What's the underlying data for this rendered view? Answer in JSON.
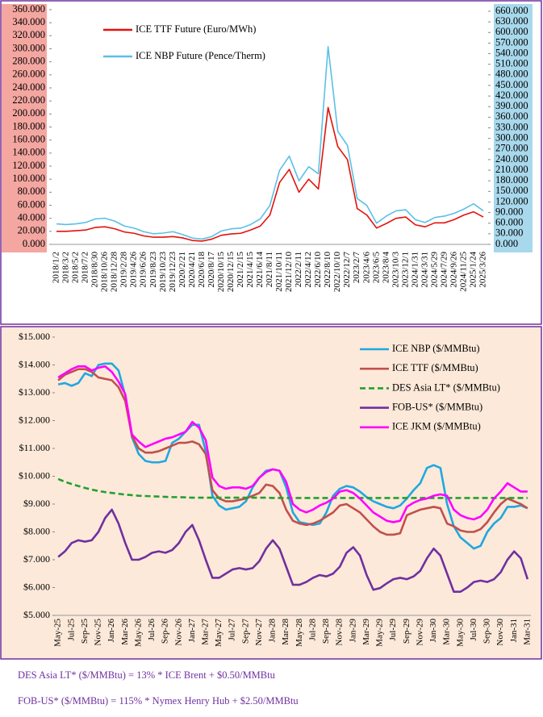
{
  "chart_data": [
    {
      "type": "line",
      "legend": "upper left",
      "grid": false,
      "categories": [
        "2018/1/2",
        "2018/3/2",
        "2018/5/2",
        "2018/7/2",
        "2018/8/30",
        "2018/10/26",
        "2018/12/28",
        "2019/2/28",
        "2019/4/26",
        "2019/6/26",
        "2019/8/23",
        "2019/10/23",
        "2019/12/23",
        "2020/2/21",
        "2020/4/21",
        "2020/6/18",
        "2020/8/17",
        "2020/10/15",
        "2020/12/15",
        "2021/2/15",
        "2021/4/15",
        "2021/6/14",
        "2021/8/11",
        "2021/10/11",
        "2021/12/10",
        "2022/2/11",
        "2022/4/12",
        "2022/6/10",
        "2022/8/10",
        "2022/10/10",
        "2022/12/7",
        "2023/2/7",
        "2023/4/6",
        "2023/6/5",
        "2023/8/4",
        "2023/10/3",
        "2023/12/1",
        "2024/1/31",
        "2024/3/31",
        "2024/5/29",
        "2024/7/29",
        "2024/9/26",
        "2024/11/25",
        "2025/1/24",
        "2025/3/26"
      ],
      "series": [
        {
          "name": "ICE NBP Future (Pence/Therm)",
          "color": "#5bc0e6",
          "axis": "y2",
          "values": [
            58,
            56,
            58,
            62,
            72,
            74,
            66,
            52,
            46,
            36,
            30,
            32,
            36,
            28,
            18,
            15,
            22,
            38,
            44,
            46,
            56,
            72,
            110,
            210,
            250,
            180,
            220,
            200,
            560,
            320,
            280,
            130,
            110,
            60,
            80,
            95,
            98,
            70,
            62,
            76,
            80,
            88,
            100,
            115,
            95
          ]
        },
        {
          "name": "ICE TTF Future (Euro/MWh)",
          "color": "#e3120b",
          "values": [
            20,
            20,
            21,
            22,
            26,
            27,
            24,
            19,
            17,
            13,
            11,
            11,
            12,
            10,
            6,
            5,
            8,
            14,
            16,
            17,
            22,
            28,
            45,
            95,
            115,
            80,
            100,
            85,
            210,
            150,
            130,
            55,
            45,
            25,
            32,
            40,
            42,
            30,
            27,
            33,
            33,
            38,
            45,
            50,
            42
          ]
        }
      ],
      "ylim": [
        0,
        360
      ],
      "yticks": [
        {
          "value": 0,
          "label": "0.000"
        },
        {
          "value": 20,
          "label": "20.000"
        },
        {
          "value": 40,
          "label": "40.000"
        },
        {
          "value": 60,
          "label": "60.000"
        },
        {
          "value": 80,
          "label": "80.000"
        },
        {
          "value": 100,
          "label": "100.000"
        },
        {
          "value": 120,
          "label": "120.000"
        },
        {
          "value": 140,
          "label": "140.000"
        },
        {
          "value": 160,
          "label": "160.000"
        },
        {
          "value": 180,
          "label": "180.000"
        },
        {
          "value": 200,
          "label": "200.000"
        },
        {
          "value": 220,
          "label": "220.000"
        },
        {
          "value": 240,
          "label": "240.000"
        },
        {
          "value": 260,
          "label": "260.000"
        },
        {
          "value": 280,
          "label": "280.000"
        },
        {
          "value": 300,
          "label": "300.000"
        },
        {
          "value": 320,
          "label": "320.000"
        },
        {
          "value": 340,
          "label": "340.000"
        },
        {
          "value": 360,
          "label": "360.000"
        }
      ],
      "y2lim": [
        0,
        660
      ],
      "y2ticks": [
        {
          "value": 0,
          "label": "0.000"
        },
        {
          "value": 30,
          "label": "30.000"
        },
        {
          "value": 60,
          "label": "60.000"
        },
        {
          "value": 90,
          "label": "90.000"
        },
        {
          "value": 120,
          "label": "120.000"
        },
        {
          "value": 150,
          "label": "150.000"
        },
        {
          "value": 180,
          "label": "180.000"
        },
        {
          "value": 210,
          "label": "210.000"
        },
        {
          "value": 240,
          "label": "240.000"
        },
        {
          "value": 270,
          "label": "270.000"
        },
        {
          "value": 300,
          "label": "300.000"
        },
        {
          "value": 330,
          "label": "330.000"
        },
        {
          "value": 360,
          "label": "360.000"
        },
        {
          "value": 390,
          "label": "390.000"
        },
        {
          "value": 420,
          "label": "420.000"
        },
        {
          "value": 450,
          "label": "450.000"
        },
        {
          "value": 480,
          "label": "480.000"
        },
        {
          "value": 510,
          "label": "510.000"
        },
        {
          "value": 540,
          "label": "540.000"
        },
        {
          "value": 570,
          "label": "570.000"
        },
        {
          "value": 600,
          "label": "600.000"
        },
        {
          "value": 630,
          "label": "630.000"
        },
        {
          "value": 660,
          "label": "660.000"
        }
      ]
    },
    {
      "type": "line",
      "legend": "upper right",
      "grid": false,
      "categories": [
        "May-25",
        null,
        "Jul-25",
        null,
        "Sep-25",
        null,
        "Nov-25",
        null,
        "Jan-26",
        null,
        "Mar-26",
        null,
        "May-26",
        null,
        "Jul-26",
        null,
        "Sep-26",
        null,
        "Nov-26",
        null,
        "Jan-27",
        null,
        "Mar-27",
        null,
        "May-27",
        null,
        "Jul-27",
        null,
        "Sep-27",
        null,
        "Nov-27",
        null,
        "Jan-28",
        null,
        "Mar-28",
        null,
        "May-28",
        null,
        "Jul-28",
        null,
        "Sep-28",
        null,
        "Nov-28",
        null,
        "Jan-29",
        null,
        "Mar-29",
        null,
        "May-29",
        null,
        "Jul-29",
        null,
        "Sep-29",
        null,
        "Nov-29",
        null,
        "Jan-30",
        null,
        "Mar-30",
        null,
        "May-30",
        null,
        "Jul-30",
        null,
        "Sep-30",
        null,
        "Nov-30",
        null,
        "Jan-31",
        null,
        "Mar-31"
      ],
      "series": [
        {
          "name": "ICE NBP ($/MMBtu)",
          "color": "#1fa8e0",
          "values": [
            13.3,
            13.35,
            13.25,
            13.35,
            13.7,
            13.6,
            14.0,
            14.05,
            14.05,
            13.8,
            12.9,
            11.4,
            10.8,
            10.55,
            10.5,
            10.5,
            10.55,
            11.2,
            11.35,
            11.6,
            11.85,
            11.85,
            10.9,
            9.3,
            8.95,
            8.8,
            8.85,
            8.9,
            9.1,
            9.6,
            9.95,
            10.2,
            10.25,
            10.2,
            9.6,
            8.7,
            8.35,
            8.3,
            8.25,
            8.3,
            8.7,
            9.3,
            9.55,
            9.65,
            9.6,
            9.45,
            9.25,
            9.1,
            9.0,
            8.9,
            8.85,
            8.95,
            9.2,
            9.5,
            9.75,
            10.3,
            10.4,
            10.3,
            9.0,
            8.2,
            7.8,
            7.6,
            7.4,
            7.5,
            8.0,
            8.3,
            8.5,
            8.9,
            8.9,
            8.95,
            8.85
          ]
        },
        {
          "name": "ICE TTF ($/MMBtu)",
          "color": "#c0504d",
          "values": [
            13.45,
            13.65,
            13.75,
            13.85,
            13.85,
            13.75,
            13.55,
            13.5,
            13.45,
            13.2,
            12.7,
            11.45,
            11.0,
            10.85,
            10.85,
            10.9,
            11.0,
            11.1,
            11.2,
            11.2,
            11.25,
            11.15,
            10.8,
            9.5,
            9.2,
            9.1,
            9.1,
            9.15,
            9.2,
            9.3,
            9.4,
            9.7,
            9.65,
            9.4,
            8.8,
            8.4,
            8.3,
            8.25,
            8.3,
            8.4,
            8.55,
            8.7,
            8.95,
            9.0,
            8.85,
            8.7,
            8.45,
            8.2,
            8.0,
            7.9,
            7.9,
            7.95,
            8.6,
            8.7,
            8.8,
            8.85,
            8.9,
            8.85,
            8.3,
            8.2,
            8.05,
            8.0,
            8.0,
            8.1,
            8.35,
            8.7,
            9.0,
            9.2,
            9.1,
            9.0,
            8.85
          ]
        },
        {
          "name": "DES Asia LT* ($/MMBtu)",
          "color": "#22a030",
          "dash": true,
          "values": [
            9.9,
            9.8,
            9.72,
            9.65,
            9.58,
            9.52,
            9.47,
            9.43,
            9.4,
            9.37,
            9.34,
            9.32,
            9.3,
            9.29,
            9.28,
            9.27,
            9.26,
            9.25,
            9.25,
            9.24,
            9.23,
            9.23,
            9.23,
            9.23,
            9.23,
            9.23,
            9.23,
            9.23,
            9.23,
            9.23,
            9.23,
            9.23,
            9.22,
            9.22,
            9.22,
            9.22,
            9.22,
            9.22,
            9.22,
            9.22,
            9.22,
            9.22,
            9.22,
            9.22,
            9.22,
            9.22,
            9.22,
            9.22,
            9.22,
            9.22,
            9.22,
            9.22,
            9.22,
            9.22,
            9.22,
            9.22,
            9.22,
            9.22,
            9.22,
            9.22,
            9.22,
            9.22,
            9.22,
            9.22,
            9.22,
            9.22,
            9.22,
            9.22,
            9.22,
            9.22,
            9.22
          ]
        },
        {
          "name": "FOB-US* ($/MMBtu)",
          "color": "#7030a0",
          "values": [
            7.1,
            7.3,
            7.6,
            7.7,
            7.65,
            7.7,
            8.0,
            8.5,
            8.8,
            8.3,
            7.6,
            7.0,
            7.0,
            7.1,
            7.25,
            7.3,
            7.25,
            7.35,
            7.6,
            8.0,
            8.25,
            7.7,
            7.0,
            6.35,
            6.35,
            6.5,
            6.65,
            6.7,
            6.65,
            6.7,
            6.95,
            7.4,
            7.7,
            7.4,
            6.75,
            6.1,
            6.1,
            6.2,
            6.35,
            6.45,
            6.4,
            6.5,
            6.75,
            7.25,
            7.45,
            7.15,
            6.45,
            5.92,
            5.98,
            6.15,
            6.3,
            6.35,
            6.3,
            6.4,
            6.6,
            7.05,
            7.4,
            7.15,
            6.5,
            5.85,
            5.85,
            6.0,
            6.2,
            6.25,
            6.2,
            6.3,
            6.55,
            7.0,
            7.3,
            7.05,
            6.3
          ]
        },
        {
          "name": "ICE JKM ($/MMBtu)",
          "color": "#ff00ff",
          "values": [
            13.55,
            13.7,
            13.85,
            13.95,
            13.95,
            13.8,
            13.9,
            13.95,
            13.75,
            13.4,
            12.95,
            11.5,
            11.25,
            11.05,
            11.15,
            11.25,
            11.35,
            11.4,
            11.5,
            11.6,
            11.95,
            11.75,
            11.3,
            9.95,
            9.65,
            9.55,
            9.6,
            9.6,
            9.55,
            9.65,
            9.95,
            10.15,
            10.25,
            10.2,
            9.8,
            9.0,
            8.8,
            8.7,
            8.8,
            8.95,
            9.05,
            9.2,
            9.45,
            9.5,
            9.4,
            9.2,
            8.95,
            8.7,
            8.55,
            8.4,
            8.35,
            8.4,
            8.9,
            9.05,
            9.15,
            9.2,
            9.3,
            9.35,
            9.3,
            8.8,
            8.6,
            8.5,
            8.45,
            8.55,
            8.8,
            9.2,
            9.45,
            9.75,
            9.6,
            9.45,
            9.45
          ]
        }
      ],
      "ylim": [
        5,
        15
      ],
      "yticks": [
        {
          "value": 5,
          "label": "$5.000"
        },
        {
          "value": 6,
          "label": "$6.000"
        },
        {
          "value": 7,
          "label": "$7.000"
        },
        {
          "value": 8,
          "label": "$8.000"
        },
        {
          "value": 9,
          "label": "$9.000"
        },
        {
          "value": 10,
          "label": "$10.000"
        },
        {
          "value": 11,
          "label": "$11.000"
        },
        {
          "value": 12,
          "label": "$12.000"
        },
        {
          "value": 13,
          "label": "$13.000"
        },
        {
          "value": 14,
          "label": "$14.000"
        },
        {
          "value": 15,
          "label": "$15.000"
        }
      ]
    }
  ],
  "notes": [
    "DES Asia LT* ($/MMBtu) = 13% * ICE Brent + $0.50/MMBtu",
    "FOB-US* ($/MMBtu) = 115% * Nymex Henry Hub + $2.50/MMBtu"
  ]
}
